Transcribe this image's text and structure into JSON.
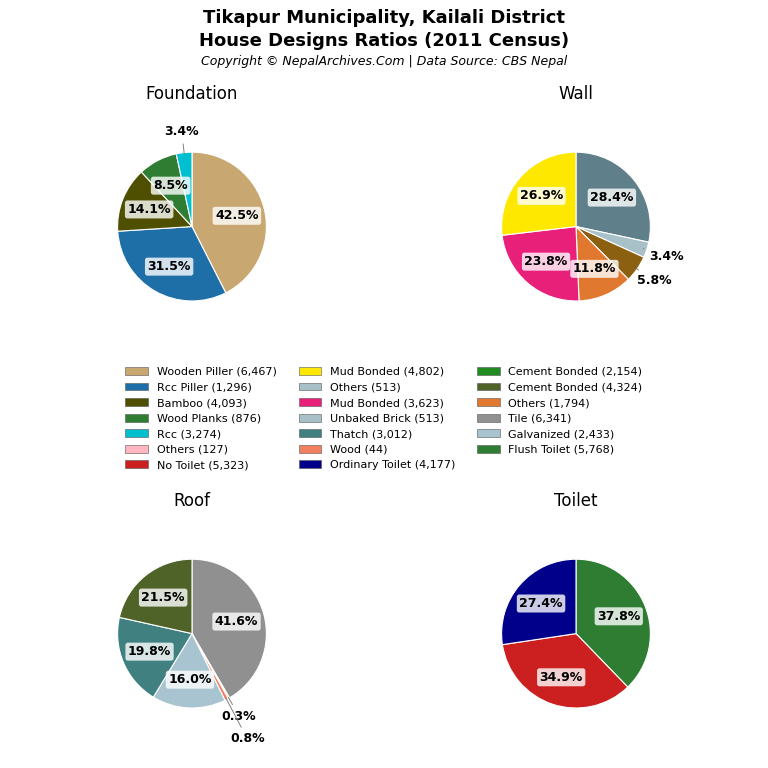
{
  "title": "Tikapur Municipality, Kailali District",
  "subtitle": "House Designs Ratios (2011 Census)",
  "annotations": [
    "Copyright © NepalArchives.Com | Data Source: CBS Nepal"
  ],
  "legend_entries": [
    {
      "name": "Wooden Piller (6,467)",
      "color": "#C8A870"
    },
    {
      "name": "Rcc Piller (1,296)",
      "color": "#1E6FA8"
    },
    {
      "name": "Bamboo (4,093)",
      "color": "#4F4F00"
    },
    {
      "name": "Wood Planks (876)",
      "color": "#2E7D32"
    },
    {
      "name": "Rcc (3,274)",
      "color": "#00BFCF"
    },
    {
      "name": "Others (127)",
      "color": "#FFB6C1"
    },
    {
      "name": "No Toilet (5,323)",
      "color": "#CC2020"
    },
    {
      "name": "Mud Bonded (4,802)",
      "color": "#FFE800"
    },
    {
      "name": "Others (513)",
      "color": "#A8C0C8"
    },
    {
      "name": "Mud Bonded (3,623)",
      "color": "#E8207A"
    },
    {
      "name": "Unbaked Brick (513)",
      "color": "#A8C0C8"
    },
    {
      "name": "Thatch (3,012)",
      "color": "#408080"
    },
    {
      "name": "Wood (44)",
      "color": "#F08060"
    },
    {
      "name": "Ordinary Toilet (4,177)",
      "color": "#00008B"
    },
    {
      "name": "Cement Bonded (2,154)",
      "color": "#228B22"
    },
    {
      "name": "Cement Bonded (4,324)",
      "color": "#4F6228"
    },
    {
      "name": "Others (1,794)",
      "color": "#E07830"
    },
    {
      "name": "Tile (6,341)",
      "color": "#909090"
    },
    {
      "name": "Galvanized (2,433)",
      "color": "#A8C4D0"
    },
    {
      "name": "Flush Toilet (5,768)",
      "color": "#2E7D32"
    }
  ],
  "chart_data": [
    {
      "type": "pie",
      "title": "Foundation",
      "values": [
        42.5,
        31.5,
        14.1,
        8.5,
        3.4
      ],
      "value_labels": [
        "42.5%",
        "31.5%",
        "14.1%",
        "8.5%",
        "3.4%"
      ],
      "colors": [
        "#C8A870",
        "#1E6FA8",
        "#4F4F00",
        "#2E7D32",
        "#00BFCF"
      ],
      "data_labels": true
    },
    {
      "type": "pie",
      "title": "Wall",
      "values": [
        28.4,
        3.4,
        5.8,
        11.8,
        23.8,
        26.9
      ],
      "value_labels": [
        "28.4%",
        "3.4%",
        "5.8%",
        "11.8%",
        "23.8%",
        "26.9%"
      ],
      "colors": [
        "#5F7F8A",
        "#A8C0C8",
        "#8B6010",
        "#E07830",
        "#E8207A",
        "#FFE800"
      ],
      "data_labels": true
    },
    {
      "type": "pie",
      "title": "Roof",
      "values": [
        41.6,
        0.3,
        0.8,
        16.0,
        19.8,
        21.5
      ],
      "value_labels": [
        "41.6%",
        "0.3%",
        "0.8%",
        "16.0%",
        "19.8%",
        "21.5%"
      ],
      "colors": [
        "#909090",
        "#FF9080",
        "#F08060",
        "#A8C4D0",
        "#408080",
        "#4F6228"
      ],
      "data_labels": true
    },
    {
      "type": "pie",
      "title": "Toilet",
      "values": [
        37.8,
        34.9,
        27.4
      ],
      "value_labels": [
        "37.8%",
        "34.9%",
        "27.4%"
      ],
      "colors": [
        "#2E7D32",
        "#CC2020",
        "#00008B"
      ],
      "data_labels": true
    }
  ]
}
